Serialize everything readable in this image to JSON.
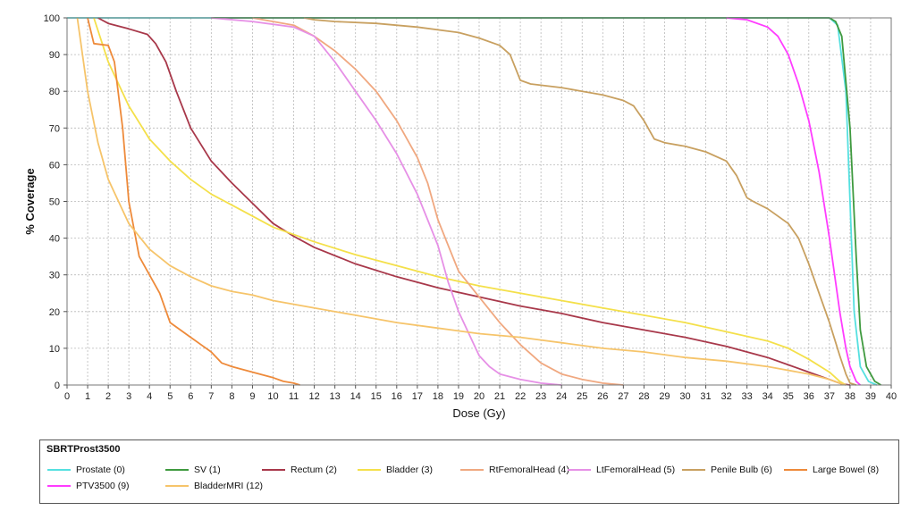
{
  "chart_data": {
    "type": "line",
    "title": "",
    "xlabel": "Dose (Gy)",
    "ylabel": "% Coverage",
    "xlim": [
      0,
      40
    ],
    "ylim": [
      0,
      100
    ],
    "xticks": [
      0,
      1,
      2,
      3,
      4,
      5,
      6,
      7,
      8,
      9,
      10,
      11,
      12,
      13,
      14,
      15,
      16,
      17,
      18,
      19,
      20,
      21,
      22,
      23,
      24,
      25,
      26,
      27,
      28,
      29,
      30,
      31,
      32,
      33,
      34,
      35,
      36,
      37,
      38,
      39,
      40
    ],
    "yticks": [
      0,
      10,
      20,
      30,
      40,
      50,
      60,
      70,
      80,
      90,
      100
    ],
    "grid": true,
    "legend_title": "SBRTProst3500",
    "legend_placement": "bottom",
    "series": [
      {
        "name": "Prostate (0)",
        "color": "#55e0e0",
        "points": [
          [
            0,
            100
          ],
          [
            37,
            100
          ],
          [
            37.4,
            98
          ],
          [
            37.8,
            80
          ],
          [
            38,
            50
          ],
          [
            38.2,
            20
          ],
          [
            38.5,
            5
          ],
          [
            38.9,
            1
          ],
          [
            39.3,
            0
          ]
        ]
      },
      {
        "name": "SV (1)",
        "color": "#3f9a3f",
        "points": [
          [
            7,
            100
          ],
          [
            37,
            100
          ],
          [
            37.3,
            99
          ],
          [
            37.6,
            95
          ],
          [
            38,
            70
          ],
          [
            38.3,
            35
          ],
          [
            38.5,
            15
          ],
          [
            38.8,
            5
          ],
          [
            39.2,
            1
          ],
          [
            39.5,
            0
          ]
        ]
      },
      {
        "name": "Rectum (2)",
        "color": "#a8384a",
        "points": [
          [
            1.5,
            100
          ],
          [
            2,
            98.5
          ],
          [
            3,
            97
          ],
          [
            3.9,
            95.5
          ],
          [
            4.3,
            93
          ],
          [
            4.8,
            88
          ],
          [
            5.3,
            80
          ],
          [
            6,
            70
          ],
          [
            7,
            61
          ],
          [
            8,
            55
          ],
          [
            9,
            49.5
          ],
          [
            10,
            44
          ],
          [
            11,
            40.5
          ],
          [
            12,
            37.5
          ],
          [
            14,
            33
          ],
          [
            16,
            29.5
          ],
          [
            18,
            26.5
          ],
          [
            20,
            24
          ],
          [
            22,
            21.5
          ],
          [
            24,
            19.5
          ],
          [
            26,
            17
          ],
          [
            28,
            15
          ],
          [
            30,
            13
          ],
          [
            32,
            10.5
          ],
          [
            34,
            7.5
          ],
          [
            35,
            5.5
          ],
          [
            36,
            3.5
          ],
          [
            37,
            1.5
          ],
          [
            37.6,
            0.3
          ],
          [
            38,
            0
          ]
        ]
      },
      {
        "name": "Bladder (3)",
        "color": "#f4e04a",
        "points": [
          [
            1.3,
            100
          ],
          [
            2,
            88
          ],
          [
            3,
            76
          ],
          [
            4,
            67
          ],
          [
            5,
            61
          ],
          [
            6,
            56
          ],
          [
            7,
            52
          ],
          [
            8,
            49
          ],
          [
            9,
            46
          ],
          [
            10,
            43
          ],
          [
            12,
            39
          ],
          [
            14,
            35.5
          ],
          [
            16,
            32.5
          ],
          [
            18,
            29.5
          ],
          [
            20,
            27
          ],
          [
            22,
            25
          ],
          [
            24,
            23
          ],
          [
            26,
            21
          ],
          [
            28,
            19
          ],
          [
            30,
            17
          ],
          [
            32,
            14.5
          ],
          [
            34,
            12
          ],
          [
            35,
            10
          ],
          [
            36,
            7
          ],
          [
            37,
            3.5
          ],
          [
            37.5,
            1
          ],
          [
            37.8,
            0
          ]
        ]
      },
      {
        "name": "RtFemoralHead (4)",
        "color": "#f0a880",
        "points": [
          [
            9,
            100
          ],
          [
            10,
            99
          ],
          [
            11,
            98
          ],
          [
            12,
            95
          ],
          [
            13,
            91
          ],
          [
            14,
            86
          ],
          [
            15,
            80
          ],
          [
            16,
            72
          ],
          [
            17,
            62
          ],
          [
            17.5,
            55
          ],
          [
            18,
            45
          ],
          [
            18.5,
            38
          ],
          [
            19,
            31
          ],
          [
            20,
            24
          ],
          [
            21,
            17
          ],
          [
            22,
            11
          ],
          [
            23,
            6
          ],
          [
            24,
            3
          ],
          [
            25,
            1.5
          ],
          [
            26,
            0.5
          ],
          [
            27,
            0
          ]
        ]
      },
      {
        "name": "LtFemoralHead (5)",
        "color": "#e690e6",
        "points": [
          [
            7,
            100
          ],
          [
            9,
            99
          ],
          [
            11,
            97.5
          ],
          [
            12,
            95
          ],
          [
            13,
            88
          ],
          [
            14,
            80
          ],
          [
            15,
            72
          ],
          [
            16,
            63
          ],
          [
            17,
            52
          ],
          [
            17.5,
            45
          ],
          [
            18,
            38
          ],
          [
            18.5,
            28
          ],
          [
            19,
            20
          ],
          [
            19.5,
            14
          ],
          [
            20,
            8
          ],
          [
            20.5,
            5
          ],
          [
            21,
            3
          ],
          [
            22,
            1.5
          ],
          [
            23,
            0.5
          ],
          [
            24,
            0
          ]
        ]
      },
      {
        "name": "Penile Bulb (6)",
        "color": "#c8a060",
        "points": [
          [
            11.5,
            100
          ],
          [
            12,
            99.5
          ],
          [
            13,
            99
          ],
          [
            15,
            98.5
          ],
          [
            17,
            97.5
          ],
          [
            19,
            96
          ],
          [
            20,
            94.5
          ],
          [
            21,
            92.5
          ],
          [
            21.5,
            90
          ],
          [
            22,
            83
          ],
          [
            22.5,
            82
          ],
          [
            24,
            81
          ],
          [
            25,
            80
          ],
          [
            26,
            79
          ],
          [
            27,
            77.5
          ],
          [
            27.5,
            76
          ],
          [
            28,
            72
          ],
          [
            28.5,
            67
          ],
          [
            29,
            66
          ],
          [
            30,
            65
          ],
          [
            31,
            63.5
          ],
          [
            32,
            61
          ],
          [
            32.5,
            57
          ],
          [
            33,
            51
          ],
          [
            33.3,
            50
          ],
          [
            34,
            48
          ],
          [
            35,
            44
          ],
          [
            35.5,
            40
          ],
          [
            36,
            33
          ],
          [
            36.5,
            25
          ],
          [
            37,
            17
          ],
          [
            37.5,
            8
          ],
          [
            37.8,
            3
          ],
          [
            38,
            0.5
          ],
          [
            38.3,
            0
          ]
        ]
      },
      {
        "name": "Large Bowel (8)",
        "color": "#ee8a3a",
        "points": [
          [
            1,
            100
          ],
          [
            1.3,
            93
          ],
          [
            2,
            92.5
          ],
          [
            2.3,
            88
          ],
          [
            2.7,
            70
          ],
          [
            3,
            50
          ],
          [
            3.5,
            35
          ],
          [
            4,
            30
          ],
          [
            4.5,
            25
          ],
          [
            5,
            17
          ],
          [
            5.5,
            15
          ],
          [
            6,
            13
          ],
          [
            6.5,
            11
          ],
          [
            7,
            9
          ],
          [
            7.5,
            6
          ],
          [
            8,
            5
          ],
          [
            9,
            3.5
          ],
          [
            10,
            2
          ],
          [
            10.5,
            1
          ],
          [
            11,
            0.5
          ],
          [
            11.3,
            0
          ]
        ]
      },
      {
        "name": "PTV3500 (9)",
        "color": "#ff3cff",
        "points": [
          [
            32,
            100
          ],
          [
            33,
            99.5
          ],
          [
            34,
            97.5
          ],
          [
            34.5,
            95
          ],
          [
            35,
            90
          ],
          [
            35.5,
            82
          ],
          [
            36,
            72
          ],
          [
            36.5,
            58
          ],
          [
            37,
            40
          ],
          [
            37.5,
            20
          ],
          [
            37.8,
            10
          ],
          [
            38,
            5
          ],
          [
            38.3,
            1
          ],
          [
            38.5,
            0
          ]
        ]
      },
      {
        "name": "BladderMRI (12)",
        "color": "#f6c46a",
        "points": [
          [
            0.5,
            100
          ],
          [
            0.8,
            88
          ],
          [
            1,
            80
          ],
          [
            1.5,
            66
          ],
          [
            2,
            56
          ],
          [
            3,
            44
          ],
          [
            4,
            37
          ],
          [
            5,
            32.5
          ],
          [
            6,
            29.5
          ],
          [
            7,
            27
          ],
          [
            8,
            25.5
          ],
          [
            9,
            24.5
          ],
          [
            10,
            23
          ],
          [
            12,
            21
          ],
          [
            14,
            19
          ],
          [
            16,
            17
          ],
          [
            18,
            15.5
          ],
          [
            20,
            14
          ],
          [
            22,
            13
          ],
          [
            24,
            11.5
          ],
          [
            26,
            10
          ],
          [
            28,
            9
          ],
          [
            30,
            7.5
          ],
          [
            32,
            6.5
          ],
          [
            34,
            5
          ],
          [
            36,
            3
          ],
          [
            37,
            1.5
          ],
          [
            37.5,
            0.5
          ],
          [
            37.8,
            0
          ]
        ]
      }
    ]
  },
  "legend": {
    "title": "SBRTProst3500",
    "items": [
      {
        "label": "Prostate (0)",
        "color": "#55e0e0"
      },
      {
        "label": "SV (1)",
        "color": "#3f9a3f"
      },
      {
        "label": "Rectum (2)",
        "color": "#a8384a"
      },
      {
        "label": "Bladder (3)",
        "color": "#f4e04a"
      },
      {
        "label": "RtFemoralHead (4)",
        "color": "#f0a880"
      },
      {
        "label": "LtFemoralHead (5)",
        "color": "#e690e6"
      },
      {
        "label": "Penile Bulb (6)",
        "color": "#c8a060"
      },
      {
        "label": "Large Bowel (8)",
        "color": "#ee8a3a"
      },
      {
        "label": "PTV3500 (9)",
        "color": "#ff3cff"
      },
      {
        "label": "BladderMRI (12)",
        "color": "#f6c46a"
      }
    ]
  }
}
